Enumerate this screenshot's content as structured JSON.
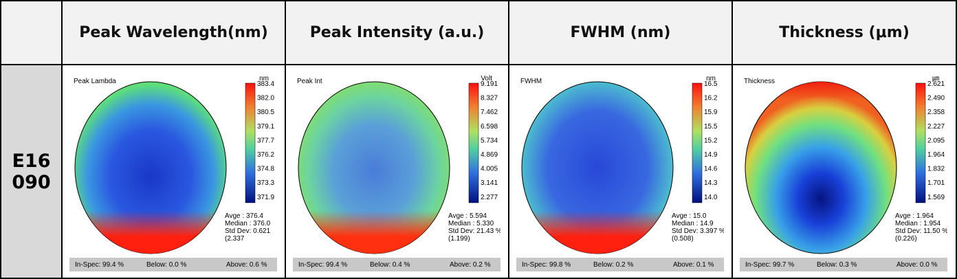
{
  "header": {
    "columns": [
      "Peak Wavelength(nm)",
      "Peak Intensity (a.u.)",
      "FWHM (nm)",
      "Thickness (μm)"
    ]
  },
  "row_label": [
    "E16",
    "090"
  ],
  "panels": [
    {
      "title": "Peak Lambda",
      "unit": "nm",
      "scale": [
        "383.4",
        "382.0",
        "380.5",
        "379.1",
        "377.7",
        "376.2",
        "374.8",
        "373.3",
        "371.9"
      ],
      "stats": [
        "Avge : 376.4",
        "Median : 376.0",
        "Std Dev: 0.621",
        "(2.337"
      ],
      "in_spec": "In-Spec: 99.4 %",
      "below": "Below: 0.0 %",
      "above": "Above: 0.6 %"
    },
    {
      "title": "Peak Int",
      "unit": "Volt",
      "scale": [
        "9.191",
        "8.327",
        "7.462",
        "6.598",
        "5.734",
        "4.869",
        "4.005",
        "3.141",
        "2.277"
      ],
      "stats": [
        "Avge : 5.594",
        "Median : 5.330",
        "Std Dev: 21.43 %",
        "(1.199)"
      ],
      "in_spec": "In-Spec: 99.4 %",
      "below": "Below: 0.4 %",
      "above": "Above: 0.2 %"
    },
    {
      "title": "FWHM",
      "unit": "nm",
      "scale": [
        "16.5",
        "16.2",
        "15.9",
        "15.5",
        "15.2",
        "14.9",
        "14.6",
        "14.3",
        "14.0"
      ],
      "stats": [
        "Avge : 15.0",
        "Median : 14.9",
        "Std Dev: 3.397 %",
        "(0.508)"
      ],
      "in_spec": "In-Spec: 99.8 %",
      "below": "Below: 0.2 %",
      "above": "Above: 0.1 %"
    },
    {
      "title": "Thickness",
      "unit": "㎛",
      "scale": [
        "2.621",
        "2.490",
        "2.358",
        "2.227",
        "2.095",
        "1.964",
        "1.832",
        "1.701",
        "1.569"
      ],
      "stats": [
        "Avge : 1.964",
        "Median : 1.954",
        "Std Dev: 11.50 %",
        "(0.226)"
      ],
      "in_spec": "In-Spec: 99.7 %",
      "below": "Below: 0.3 %",
      "above": "Above: 0.0 %"
    }
  ]
}
